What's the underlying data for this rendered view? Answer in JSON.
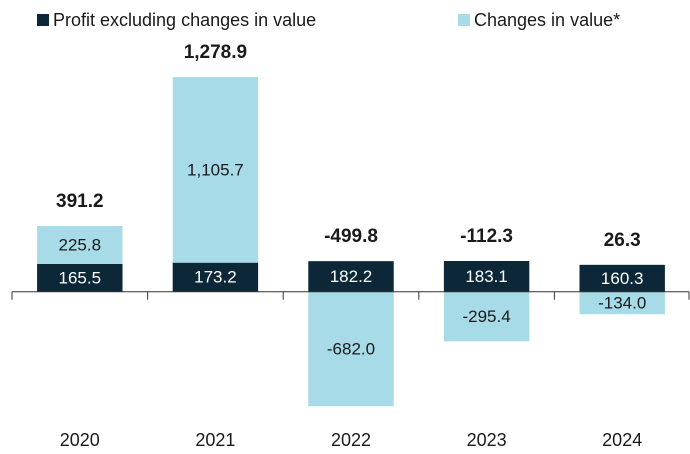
{
  "chart_data": {
    "type": "bar",
    "stacked": true,
    "categories": [
      "2020",
      "2021",
      "2022",
      "2023",
      "2024"
    ],
    "series": [
      {
        "name": "Profit excluding changes in value",
        "color": "#0c2838",
        "values": [
          165.5,
          173.2,
          182.2,
          183.1,
          160.3
        ],
        "value_labels": [
          "165.5",
          "173.2",
          "182.2",
          "183.1",
          "160.3"
        ]
      },
      {
        "name": "Changes in value*",
        "color": "#a6dbe7",
        "values": [
          225.8,
          1105.7,
          -682.0,
          -295.4,
          -134.0
        ],
        "value_labels": [
          "225.8",
          "1,105.7",
          "-682.0",
          "-295.4",
          "-134.0"
        ]
      }
    ],
    "totals": [
      391.2,
      1278.9,
      -499.8,
      -112.3,
      26.3
    ],
    "total_labels": [
      "391.2",
      "1,278.9",
      "-499.8",
      "-112.3",
      "26.3"
    ],
    "ylim": [
      -800,
      1500
    ]
  }
}
